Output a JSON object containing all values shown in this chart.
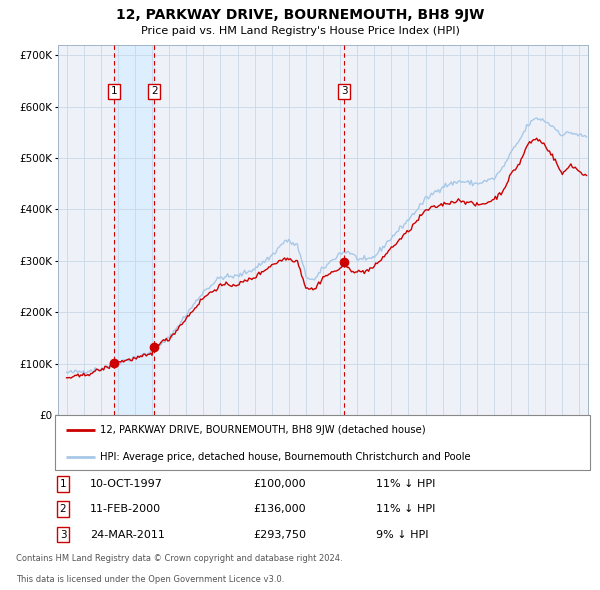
{
  "title": "12, PARKWAY DRIVE, BOURNEMOUTH, BH8 9JW",
  "subtitle": "Price paid vs. HM Land Registry's House Price Index (HPI)",
  "legend_line1": "12, PARKWAY DRIVE, BOURNEMOUTH, BH8 9JW (detached house)",
  "legend_line2": "HPI: Average price, detached house, Bournemouth Christchurch and Poole",
  "footer1": "Contains HM Land Registry data © Crown copyright and database right 2024.",
  "footer2": "This data is licensed under the Open Government Licence v3.0.",
  "transactions": [
    {
      "label": "1",
      "date": "10-OCT-1997",
      "price": 100000,
      "pct": "11%",
      "dir": "↓",
      "x": 1997.78
    },
    {
      "label": "2",
      "date": "11-FEB-2000",
      "price": 136000,
      "pct": "11%",
      "dir": "↓",
      "x": 2000.12
    },
    {
      "label": "3",
      "date": "24-MAR-2011",
      "price": 293750,
      "pct": "9%",
      "dir": "↓",
      "x": 2011.23
    }
  ],
  "hpi_color": "#a8c8e8",
  "price_color": "#cc0000",
  "dot_color": "#cc0000",
  "vline_color": "#cc0000",
  "shade_color": "#ddeeff",
  "grid_color": "#c8d8e8",
  "bg_color": "#eef2f8",
  "ylim": [
    0,
    720000
  ],
  "xlim_start": 1994.5,
  "xlim_end": 2025.5
}
